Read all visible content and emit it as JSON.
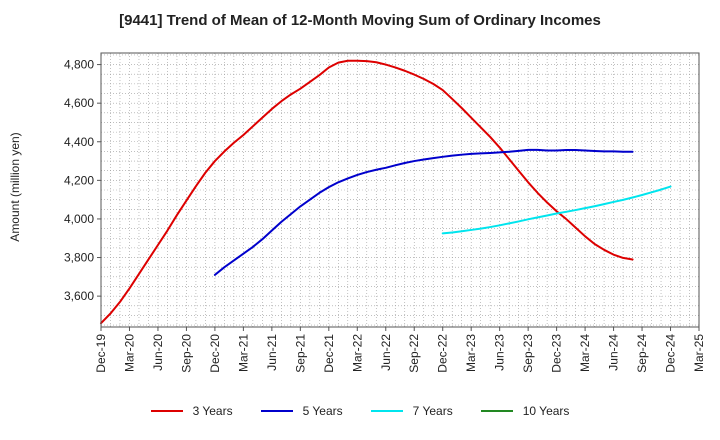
{
  "chart_data": {
    "type": "line",
    "title": "[9441]  Trend of Mean of 12-Month Moving Sum of Ordinary Incomes",
    "xlabel": "",
    "ylabel": "Amount (million yen)",
    "ylim": [
      3440,
      4860
    ],
    "y_ticks": [
      3600,
      3800,
      4000,
      4200,
      4400,
      4600,
      4800
    ],
    "y_tick_labels": [
      "3,600",
      "3,800",
      "4,000",
      "4,200",
      "4,400",
      "4,600",
      "4,800"
    ],
    "x_tick_labels": [
      "Dec-19",
      "Mar-20",
      "Jun-20",
      "Sep-20",
      "Dec-20",
      "Mar-21",
      "Jun-21",
      "Sep-21",
      "Dec-21",
      "Mar-22",
      "Jun-22",
      "Sep-22",
      "Dec-22",
      "Mar-23",
      "Jun-23",
      "Sep-23",
      "Dec-23",
      "Mar-24",
      "Jun-24",
      "Sep-24",
      "Dec-24",
      "Mar-25"
    ],
    "grid": true,
    "legend_position": "bottom",
    "series": [
      {
        "name": "3 Years",
        "color": "#dd0000",
        "start_index": 0,
        "values": [
          3460,
          3510,
          3570,
          3640,
          3715,
          3790,
          3865,
          3940,
          4020,
          4095,
          4170,
          4240,
          4300,
          4350,
          4395,
          4435,
          4480,
          4525,
          4570,
          4610,
          4645,
          4675,
          4710,
          4745,
          4785,
          4810,
          4820,
          4820,
          4818,
          4812,
          4800,
          4785,
          4768,
          4748,
          4726,
          4700,
          4668,
          4622,
          4575,
          4525,
          4475,
          4425,
          4370,
          4310,
          4250,
          4190,
          4135,
          4085,
          4040,
          4000,
          3955,
          3910,
          3870,
          3840,
          3815,
          3798,
          3790
        ]
      },
      {
        "name": "5 Years",
        "color": "#0000cc",
        "start_index": 12,
        "values": [
          3710,
          3750,
          3785,
          3820,
          3855,
          3895,
          3940,
          3985,
          4025,
          4065,
          4100,
          4135,
          4165,
          4190,
          4210,
          4228,
          4243,
          4255,
          4265,
          4278,
          4290,
          4300,
          4308,
          4315,
          4322,
          4328,
          4333,
          4337,
          4340,
          4342,
          4345,
          4348,
          4353,
          4358,
          4358,
          4355,
          4355,
          4357,
          4357,
          4355,
          4352,
          4350,
          4350,
          4348,
          4348
        ]
      },
      {
        "name": "7 Years",
        "color": "#00e5ee",
        "start_index": 36,
        "values": [
          3925,
          3930,
          3936,
          3943,
          3950,
          3958,
          3967,
          3977,
          3987,
          3998,
          4008,
          4018,
          4028,
          4037,
          4046,
          4056,
          4066,
          4077,
          4088,
          4099,
          4111,
          4124,
          4138,
          4152,
          4168
        ]
      },
      {
        "name": "10 Years",
        "color": "#228822",
        "start_index": 0,
        "values": []
      }
    ]
  }
}
